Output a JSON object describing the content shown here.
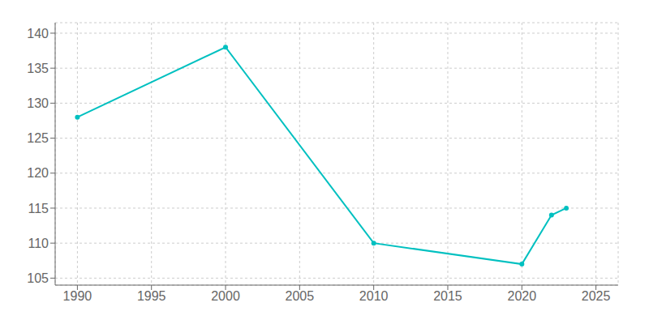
{
  "chart_data": {
    "type": "line",
    "x": [
      1990,
      2000,
      2010,
      2020,
      2022,
      2023
    ],
    "values": [
      128,
      138,
      110,
      107,
      114,
      115
    ],
    "color": "#00c0c0",
    "marker": "circle",
    "xlim": [
      1988.5,
      2026.5
    ],
    "ylim": [
      104,
      141.5
    ],
    "xticks": [
      1990,
      1995,
      2000,
      2005,
      2010,
      2015,
      2020,
      2025
    ],
    "yticks": [
      105,
      110,
      115,
      120,
      125,
      130,
      135,
      140
    ],
    "grid": true
  }
}
